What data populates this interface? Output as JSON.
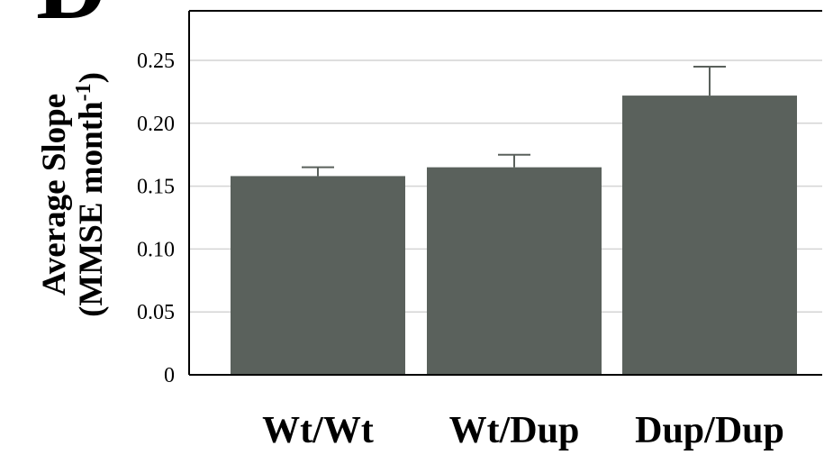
{
  "panel_letter": "D",
  "chart_data": {
    "type": "bar",
    "categories": [
      "Wt/Wt",
      "Wt/Dup",
      "Dup/Dup"
    ],
    "values": [
      0.158,
      0.165,
      0.222
    ],
    "errors": [
      0.007,
      0.01,
      0.023
    ],
    "title": "",
    "xlabel": "",
    "ylabel_line1": "Average Slope",
    "ylabel_line2_main": "(MMSE month",
    "ylabel_line2_sup": "-1",
    "ylabel_line2_end": ")",
    "ylim": [
      0,
      0.25
    ],
    "yticks": [
      0,
      0.05,
      0.1,
      0.15,
      0.2,
      0.25
    ],
    "ytick_labels": [
      "0",
      "0.05",
      "0.10",
      "0.15",
      "0.20",
      "0.25"
    ],
    "grid": true,
    "legend": "none",
    "bar_color": "#5a615c",
    "grid_color": "#d4d4d4"
  }
}
